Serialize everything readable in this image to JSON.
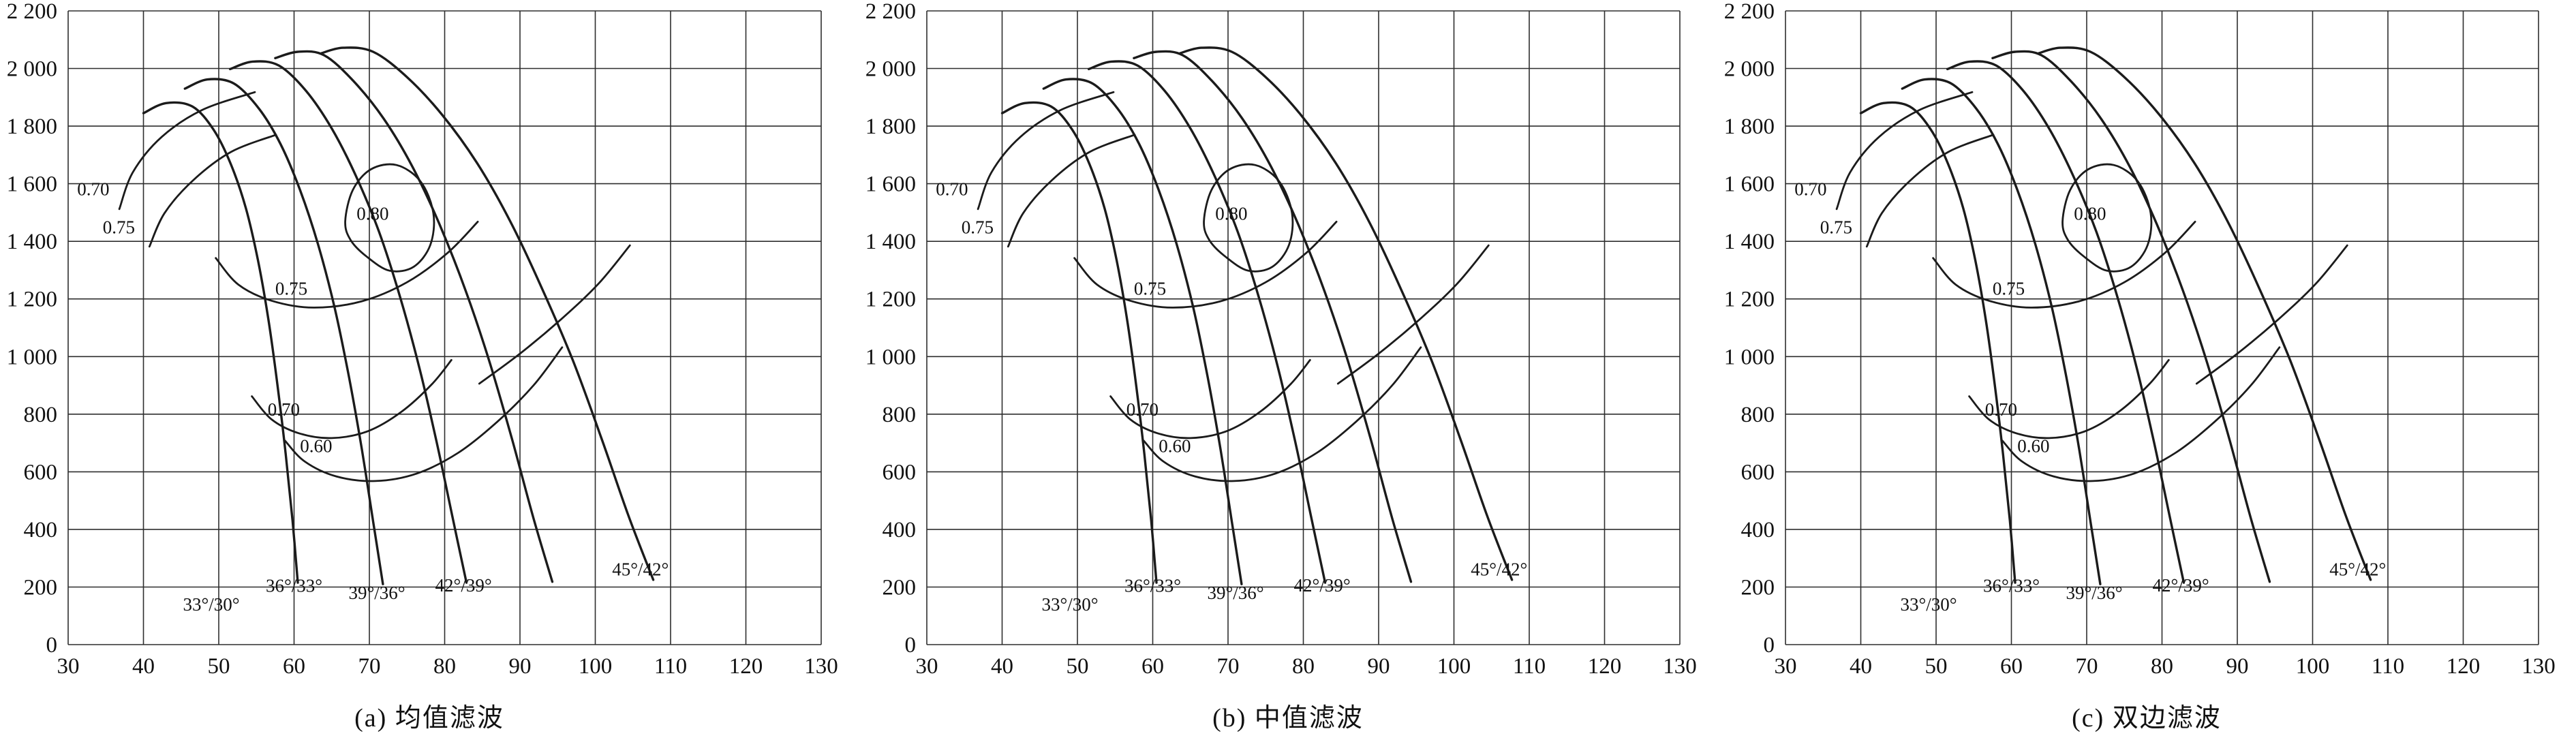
{
  "colors": {
    "stroke": "#1b1b1b",
    "grid": "#2e2e2e",
    "background": "#ffffff"
  },
  "chart_data": [
    {
      "type": "line",
      "caption": "(a) 均值滤波",
      "title": "",
      "xlabel": "",
      "ylabel": "",
      "xlim": [
        30,
        130
      ],
      "ylim": [
        0,
        2200
      ],
      "grid": true,
      "x_ticks": [
        30,
        40,
        50,
        60,
        70,
        80,
        90,
        100,
        110,
        120,
        130
      ],
      "y_ticks": [
        [
          0,
          "0"
        ],
        [
          200,
          "200"
        ],
        [
          400,
          "400"
        ],
        [
          600,
          "600"
        ],
        [
          800,
          "800"
        ],
        [
          1000,
          "1 000"
        ],
        [
          1200,
          "1 200"
        ],
        [
          1400,
          "1 400"
        ],
        [
          1600,
          "1 600"
        ],
        [
          1800,
          "1 800"
        ],
        [
          2000,
          "2 000"
        ],
        [
          2200,
          "2 200"
        ]
      ],
      "curves": [
        {
          "name": "33°/30°",
          "label_pos": [
            49,
            118
          ],
          "points": [
            [
              40,
              1845
            ],
            [
              43,
              1880
            ],
            [
              46.5,
              1868
            ],
            [
              49.3,
              1788
            ],
            [
              51.6,
              1668
            ],
            [
              53.6,
              1515
            ],
            [
              55.2,
              1335
            ],
            [
              56.6,
              1128
            ],
            [
              57.8,
              900
            ],
            [
              58.9,
              660
            ],
            [
              59.8,
              430
            ],
            [
              60.5,
              215
            ]
          ]
        },
        {
          "name": "36°/33°",
          "label_pos": [
            60,
            183
          ],
          "points": [
            [
              45.5,
              1930
            ],
            [
              48.5,
              1962
            ],
            [
              52,
              1948
            ],
            [
              55.3,
              1862
            ],
            [
              58.2,
              1738
            ],
            [
              60.8,
              1578
            ],
            [
              63.2,
              1388
            ],
            [
              65.4,
              1168
            ],
            [
              67.3,
              928
            ],
            [
              69,
              678
            ],
            [
              70.5,
              428
            ],
            [
              71.8,
              210
            ]
          ]
        },
        {
          "name": "39°/36°",
          "label_pos": [
            71,
            158
          ],
          "points": [
            [
              51.5,
              1998
            ],
            [
              54.5,
              2024
            ],
            [
              58,
              2010
            ],
            [
              61.6,
              1922
            ],
            [
              65,
              1792
            ],
            [
              68.2,
              1628
            ],
            [
              71.3,
              1432
            ],
            [
              74.1,
              1205
            ],
            [
              76.7,
              955
            ],
            [
              79,
              695
            ],
            [
              81.1,
              435
            ],
            [
              82.9,
              215
            ]
          ]
        },
        {
          "name": "42°/39°",
          "label_pos": [
            82.5,
            185
          ],
          "points": [
            [
              57.5,
              2036
            ],
            [
              60.5,
              2058
            ],
            [
              64,
              2046
            ],
            [
              67.9,
              1956
            ],
            [
              71.9,
              1826
            ],
            [
              75.7,
              1660
            ],
            [
              79.3,
              1460
            ],
            [
              82.8,
              1228
            ],
            [
              86,
              978
            ],
            [
              89,
              708
            ],
            [
              91.8,
              438
            ],
            [
              94.3,
              218
            ]
          ]
        },
        {
          "name": "45°/42°",
          "label_pos": [
            106,
            240
          ],
          "points": [
            [
              63.5,
              2052
            ],
            [
              66.5,
              2072
            ],
            [
              70.5,
              2058
            ],
            [
              75,
              1970
            ],
            [
              79.7,
              1838
            ],
            [
              84.3,
              1672
            ],
            [
              88.7,
              1470
            ],
            [
              92.9,
              1238
            ],
            [
              97,
              988
            ],
            [
              100.8,
              718
            ],
            [
              104.4,
              448
            ],
            [
              107.7,
              225
            ]
          ]
        }
      ],
      "contours": [
        {
          "value": "0.70",
          "label_pos": [
            31.2,
            1560
          ],
          "closed": false,
          "points": [
            [
              36.8,
              1512
            ],
            [
              38.6,
              1640
            ],
            [
              42.4,
              1762
            ],
            [
              47.8,
              1856
            ],
            [
              54.8,
              1918
            ]
          ]
        },
        {
          "value": "0.75",
          "label_pos": [
            34.6,
            1428
          ],
          "closed": false,
          "points": [
            [
              40.8,
              1382
            ],
            [
              42.8,
              1498
            ],
            [
              46.6,
              1612
            ],
            [
              51.6,
              1710
            ],
            [
              57.6,
              1770
            ]
          ]
        },
        {
          "value": "0.80",
          "label_pos": [
            68.3,
            1475
          ],
          "closed": true,
          "points": [
            [
              66.8,
              1470
            ],
            [
              67.8,
              1578
            ],
            [
              70.2,
              1650
            ],
            [
              73.6,
              1665
            ],
            [
              76.8,
              1608
            ],
            [
              78.5,
              1498
            ],
            [
              78.1,
              1388
            ],
            [
              75.9,
              1312
            ],
            [
              72.7,
              1298
            ],
            [
              69.6,
              1348
            ],
            [
              67.5,
              1405
            ]
          ]
        },
        {
          "value": "0.75",
          "label_pos": [
            57.5,
            1215
          ],
          "closed": false,
          "points": [
            [
              49.6,
              1342
            ],
            [
              52.6,
              1250
            ],
            [
              57,
              1194
            ],
            [
              62.6,
              1170
            ],
            [
              69,
              1192
            ],
            [
              75,
              1258
            ],
            [
              80.4,
              1360
            ],
            [
              84.4,
              1468
            ]
          ]
        },
        {
          "value": "0.70",
          "label_pos": [
            56.5,
            795
          ],
          "closed": false,
          "points": [
            [
              54.4,
              862
            ],
            [
              57,
              782
            ],
            [
              60.6,
              734
            ],
            [
              65,
              717
            ],
            [
              69.8,
              741
            ],
            [
              74.3,
              809
            ],
            [
              78.3,
              904
            ],
            [
              80.9,
              988
            ]
          ]
        },
        {
          "value": "0.60",
          "label_pos": [
            60.8,
            668
          ],
          "closed": false,
          "points": [
            [
              58.8,
              708
            ],
            [
              61.4,
              636
            ],
            [
              65.6,
              584
            ],
            [
              70.8,
              568
            ],
            [
              76.3,
              594
            ],
            [
              81.8,
              666
            ],
            [
              87,
              774
            ],
            [
              91.8,
              900
            ],
            [
              95.6,
              1032
            ]
          ]
        },
        {
          "value": "",
          "label_pos": [
            0,
            0
          ],
          "closed": false,
          "points": [
            [
              84.6,
              906
            ],
            [
              90,
              1010
            ],
            [
              95.4,
              1128
            ],
            [
              100.4,
              1252
            ],
            [
              104.6,
              1386
            ]
          ]
        }
      ]
    },
    {
      "caption": "(b) 中值滤波",
      "same_as": 0
    },
    {
      "caption": "(c) 双边滤波",
      "same_as": 0
    }
  ]
}
